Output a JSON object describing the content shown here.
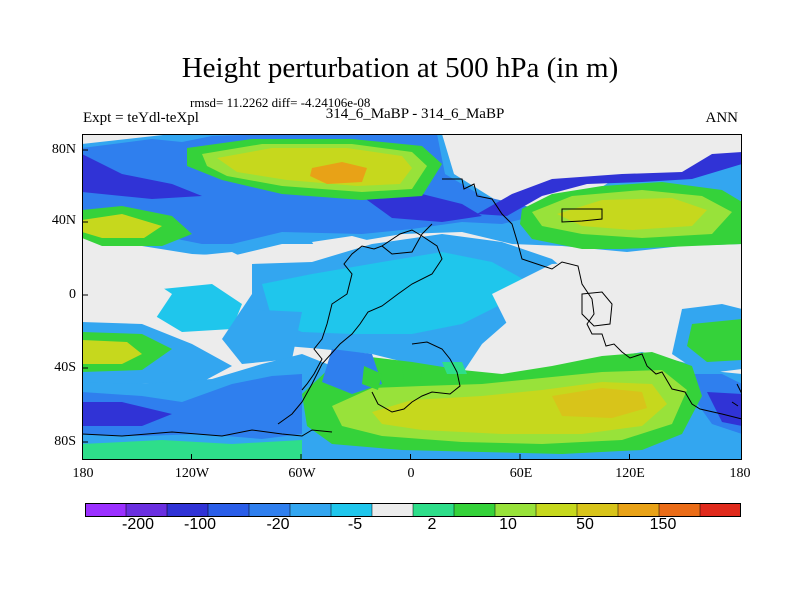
{
  "title": "Height perturbation at 500 hPa (in m)",
  "stats": "rmsd= 11.2262 diff= -4.24106e-08",
  "expt_label": "Expt = teYdl-teXpl",
  "center_label": "314_6_MaBP - 314_6_MaBP",
  "season_label": "ANN",
  "lat_ticks": [
    "80N",
    "40N",
    "0",
    "40S",
    "80S"
  ],
  "lon_ticks": [
    "180",
    "120W",
    "60W",
    "0",
    "60E",
    "120E",
    "180"
  ],
  "colorbar": {
    "labels": [
      "-200",
      "-100",
      "-20",
      "-5",
      "2",
      "10",
      "50",
      "150"
    ],
    "colors": [
      "#9b30ff",
      "#6a2fe0",
      "#3033d6",
      "#2a5ee8",
      "#2f7fee",
      "#33a6f0",
      "#1fc6ec",
      "#ececec",
      "#2ede8a",
      "#35d23a",
      "#98e23a",
      "#c6d81d",
      "#d8c41a",
      "#e8a217",
      "#ea6c17",
      "#e02a1c"
    ]
  },
  "colors": {
    "gray": "#ececec",
    "blue_dark": "#3033d6",
    "blue": "#2f7fee",
    "blue_light": "#33a6f0",
    "cyan": "#1fc6ec",
    "green": "#35d23a",
    "green_light": "#2ede8a",
    "yellow_green": "#98e23a",
    "olive": "#c6d81d",
    "yellow": "#d8c41a",
    "orange": "#e8a217"
  }
}
